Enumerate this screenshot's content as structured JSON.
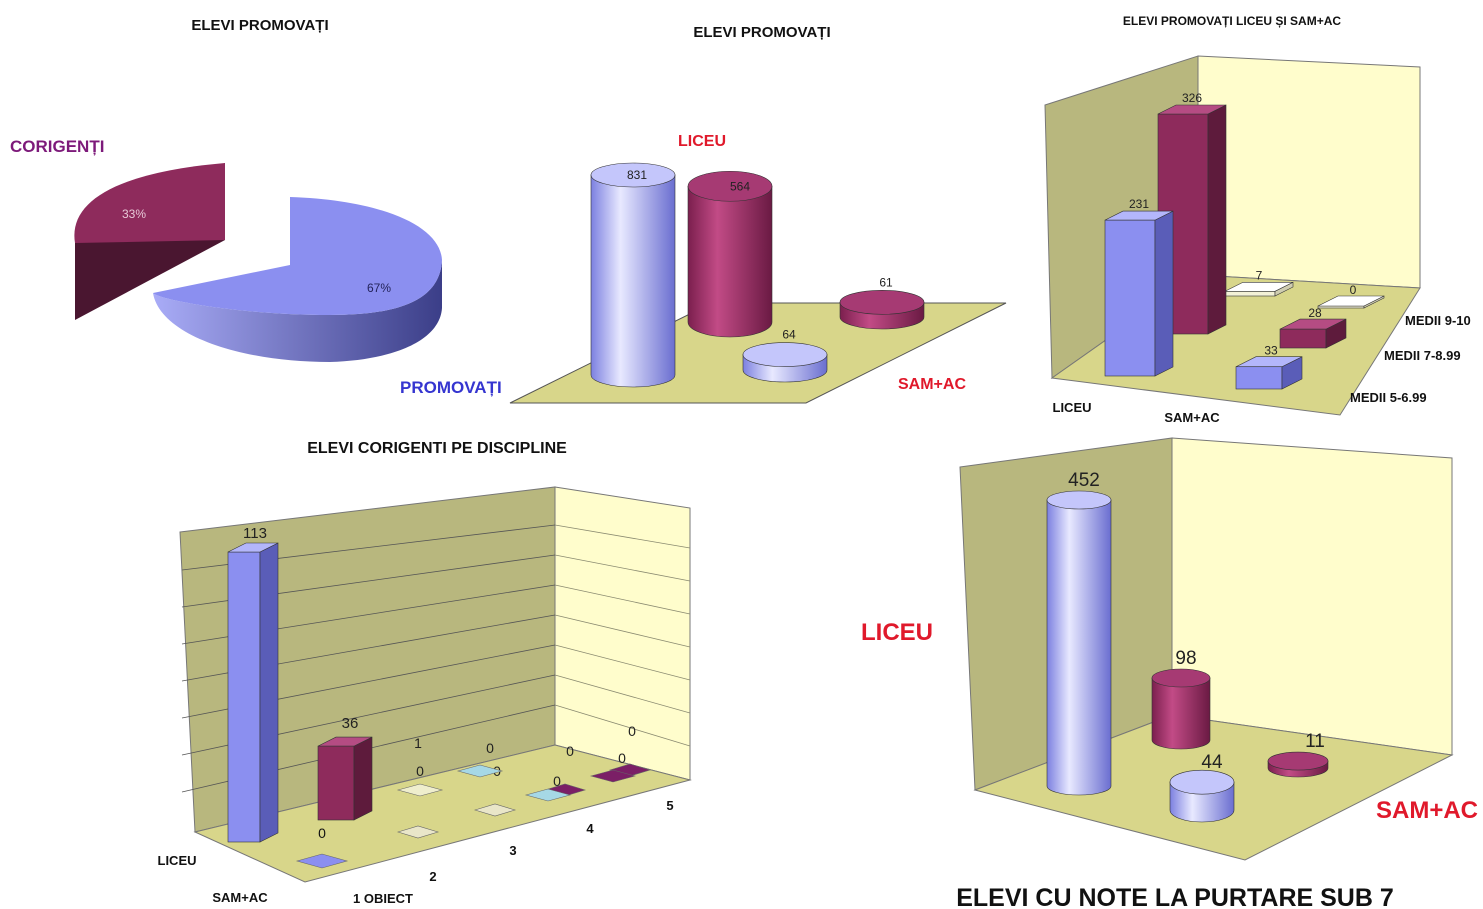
{
  "chart_data": [
    {
      "id": "pie_promovati",
      "type": "pie",
      "title": "ELEVI PROMOVAȚI",
      "slices": [
        {
          "name": "PROMOVAȚI",
          "label": "67%",
          "value": 67
        },
        {
          "name": "CORIGENȚI",
          "label": "33%",
          "value": 33
        }
      ],
      "colors": {
        "PROMOVAȚI": "#8b8ff0",
        "CORIGENȚI": "#8e2b5c"
      }
    },
    {
      "id": "cyl_promovati",
      "type": "bar",
      "title": "ELEVI PROMOVAȚI",
      "categories": [
        "LICEU",
        "SAM+AC"
      ],
      "series": [
        {
          "name": "PROMOVAȚI",
          "values": [
            831,
            64
          ],
          "labels": [
            "831",
            "64"
          ]
        },
        {
          "name": "CORIGENȚI",
          "values": [
            564,
            61
          ],
          "labels": [
            "564",
            "61"
          ]
        }
      ]
    },
    {
      "id": "bar_medii",
      "type": "bar",
      "title": "ELEVI PROMOVAȚI LICEU ȘI SAM+AC",
      "categories": [
        "LICEU",
        "SAM+AC"
      ],
      "series": [
        {
          "name": "MEDII 5-6.99",
          "values": [
            231,
            33
          ],
          "labels": [
            "231",
            "33"
          ]
        },
        {
          "name": "MEDII 7-8.99",
          "values": [
            326,
            28
          ],
          "labels": [
            "326",
            "28"
          ]
        },
        {
          "name": "MEDII 9-10",
          "values": [
            7,
            0
          ],
          "labels": [
            "7",
            "0"
          ]
        }
      ]
    },
    {
      "id": "bar_corigenti",
      "type": "bar",
      "title": "ELEVI CORIGENTI PE DISCIPLINE",
      "categories": [
        "1 OBIECT",
        "2",
        "3",
        "4",
        "5"
      ],
      "series": [
        {
          "name": "LICEU",
          "values": [
            113,
            1,
            0,
            0,
            0
          ],
          "labels": [
            "113",
            "1",
            "0",
            "0",
            "0"
          ]
        },
        {
          "name": "SAM+AC",
          "values": [
            36,
            0,
            0,
            0,
            0
          ],
          "labels": [
            "36",
            "0",
            "0",
            "0",
            "0"
          ]
        }
      ],
      "extra_labels": [
        "0"
      ],
      "row_labels": [
        "LICEU",
        "SAM+AC"
      ]
    },
    {
      "id": "cyl_purtare",
      "type": "bar",
      "title": "ELEVI CU NOTE LA PURTARE SUB 7",
      "categories": [
        "LICEU",
        "SAM+AC"
      ],
      "series": [
        {
          "values": [
            452,
            44
          ],
          "labels": [
            "452",
            "44"
          ]
        },
        {
          "values": [
            98,
            11
          ],
          "labels": [
            "98",
            "11"
          ]
        }
      ]
    }
  ],
  "colors": {
    "blue": "#8b8ff0",
    "maroon": "#8e2b5c",
    "floor": "#d8d68a",
    "wall_left": "#b8b77e",
    "wall_right": "#fffdcc",
    "red_label": "#e0192b",
    "purple_label": "#7d1a7a",
    "blue_label": "#3535d0"
  }
}
